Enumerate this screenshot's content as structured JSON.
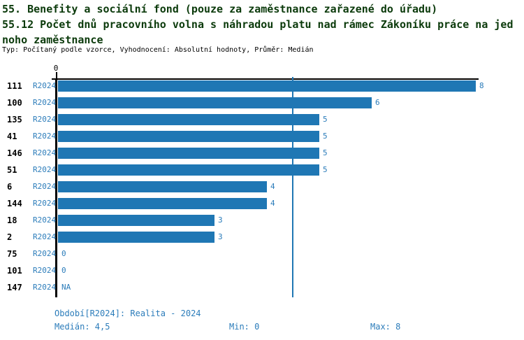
{
  "header": {
    "title_line1": "55. Benefity a sociální fond (pouze za zaměstnance zařazené do úřadu)",
    "title_line2": "55.12 Počet dnů pracovního volna s náhradou platu nad rámec Zákoníku práce na jed",
    "title_line3": "noho zaměstnance",
    "meta_line": "Typ: Počítaný podle vzorce, Vyhodnocení: Absolutní hodnoty, Průměr: Medián"
  },
  "chart_data": {
    "type": "bar",
    "orientation": "horizontal",
    "categories": [
      "111",
      "100",
      "135",
      "41",
      "146",
      "51",
      "6",
      "144",
      "18",
      "2",
      "75",
      "101",
      "147"
    ],
    "series_label": "R2024",
    "values": [
      8,
      6,
      5,
      5,
      5,
      5,
      4,
      4,
      3,
      3,
      0,
      0,
      null
    ],
    "value_labels": [
      "8",
      "6",
      "5",
      "5",
      "5",
      "5",
      "4",
      "4",
      "3",
      "3",
      "0",
      "0",
      "NA"
    ],
    "xlim": [
      0,
      8
    ],
    "x_tick_labels": [
      "0"
    ],
    "median_reference_line": 4.5,
    "grid": false,
    "legend_position": "none",
    "bar_color": "#1f77b4",
    "label_color": "#2b7cba",
    "stats": {
      "median": "4,5",
      "min": "0",
      "max": "8"
    }
  },
  "footer": {
    "period_line": "Období[R2024]: Realita - 2024",
    "median_label": "Medián: 4,5",
    "min_label": "Min: 0",
    "max_label": "Max: 8"
  },
  "colors": {
    "title_green": "#0b3a0b",
    "bar_blue": "#1f77b4",
    "text_blue": "#2b7cba",
    "axis_black": "#000000"
  }
}
